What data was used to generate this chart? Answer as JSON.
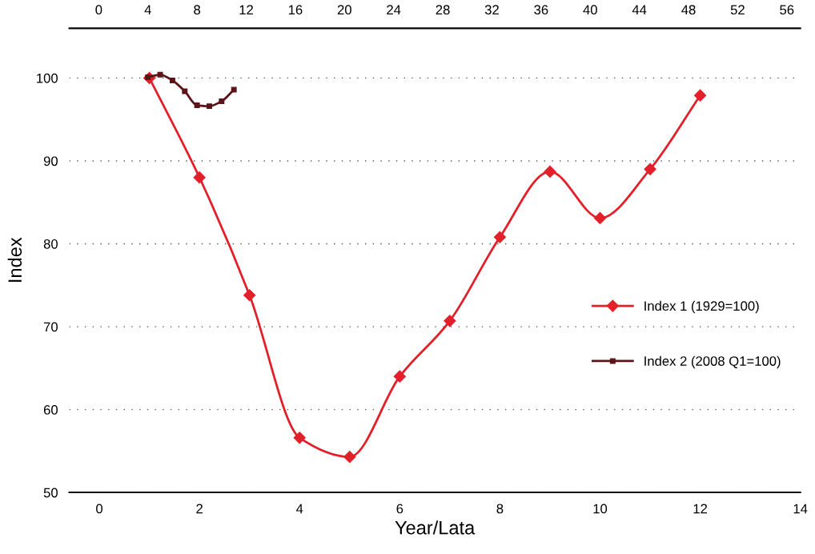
{
  "chart_data": {
    "type": "line",
    "xlabel": "Year/Lata",
    "ylabel": "Index",
    "xlim": [
      -0.6,
      14
    ],
    "xticks": [
      0,
      2,
      4,
      6,
      8,
      10,
      12,
      14
    ],
    "x2lim": [
      -2.4,
      57.1
    ],
    "x2ticks": [
      0,
      4,
      8,
      12,
      16,
      20,
      24,
      28,
      32,
      36,
      40,
      44,
      48,
      52,
      56
    ],
    "ylim": [
      50,
      106
    ],
    "yticks": [
      50,
      60,
      70,
      80,
      90,
      100
    ],
    "grid": "y",
    "legend": "right",
    "series": [
      {
        "name": "Index 1 (1929=100)",
        "color": "#e3202a",
        "marker": "diamond",
        "x": [
          1,
          2,
          3,
          4,
          5,
          6,
          7,
          8,
          9,
          10,
          11,
          12
        ],
        "values": [
          100.0,
          88.0,
          73.8,
          56.6,
          54.3,
          64.0,
          70.7,
          80.8,
          88.7,
          83.1,
          89.0,
          97.9
        ]
      },
      {
        "name": "Index 2 (2008 Q1=100)",
        "color": "#5c1418",
        "marker": "square",
        "axis": "x2",
        "x": [
          4,
          5,
          6,
          7,
          8,
          9,
          10,
          11
        ],
        "values": [
          100.1,
          100.4,
          99.7,
          98.4,
          96.7,
          96.6,
          97.2,
          98.6
        ]
      }
    ]
  }
}
